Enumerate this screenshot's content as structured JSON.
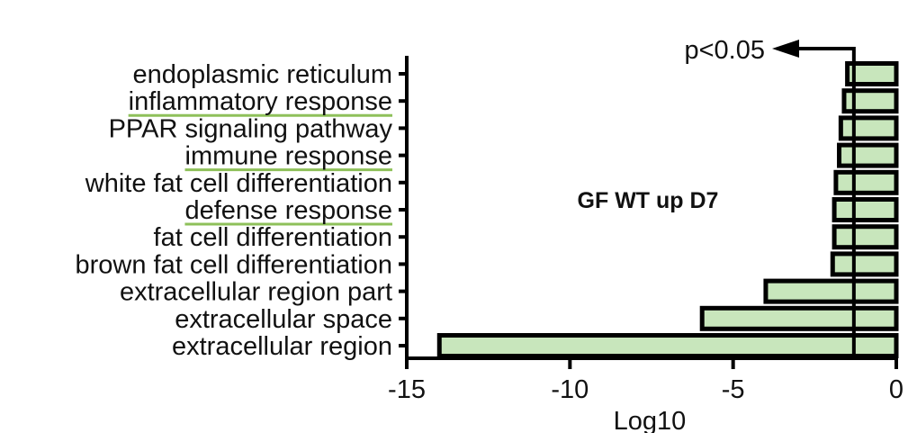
{
  "chart_data": {
    "type": "bar",
    "orientation": "horizontal",
    "title": "GF WT up D7",
    "xlabel": "Log10",
    "ylabel": "",
    "xlim": [
      -15,
      0
    ],
    "xticks": [
      -15,
      -10,
      -5,
      0
    ],
    "categories": [
      "endoplasmic reticulum",
      "inflammatory response",
      "PPAR signaling pathway",
      "immune response",
      "white fat cell differentiation",
      "defense response",
      "fat cell differentiation",
      "brown fat cell differentiation",
      "extracellular region part",
      "extracellular space",
      "extracellular region"
    ],
    "values": [
      -1.5,
      -1.6,
      -1.7,
      -1.75,
      -1.85,
      -1.9,
      -1.9,
      -1.95,
      -4.0,
      -5.95,
      -14.0
    ],
    "underlined_categories": [
      "inflammatory response",
      "immune response",
      "defense response"
    ],
    "annotation": {
      "label": "p<0.05",
      "threshold": -1.3
    },
    "colors": {
      "bar_fill": "#c8e6bc",
      "bar_stroke": "#000000",
      "underline": "#8ec05a"
    },
    "grid": false,
    "legend": "none"
  }
}
